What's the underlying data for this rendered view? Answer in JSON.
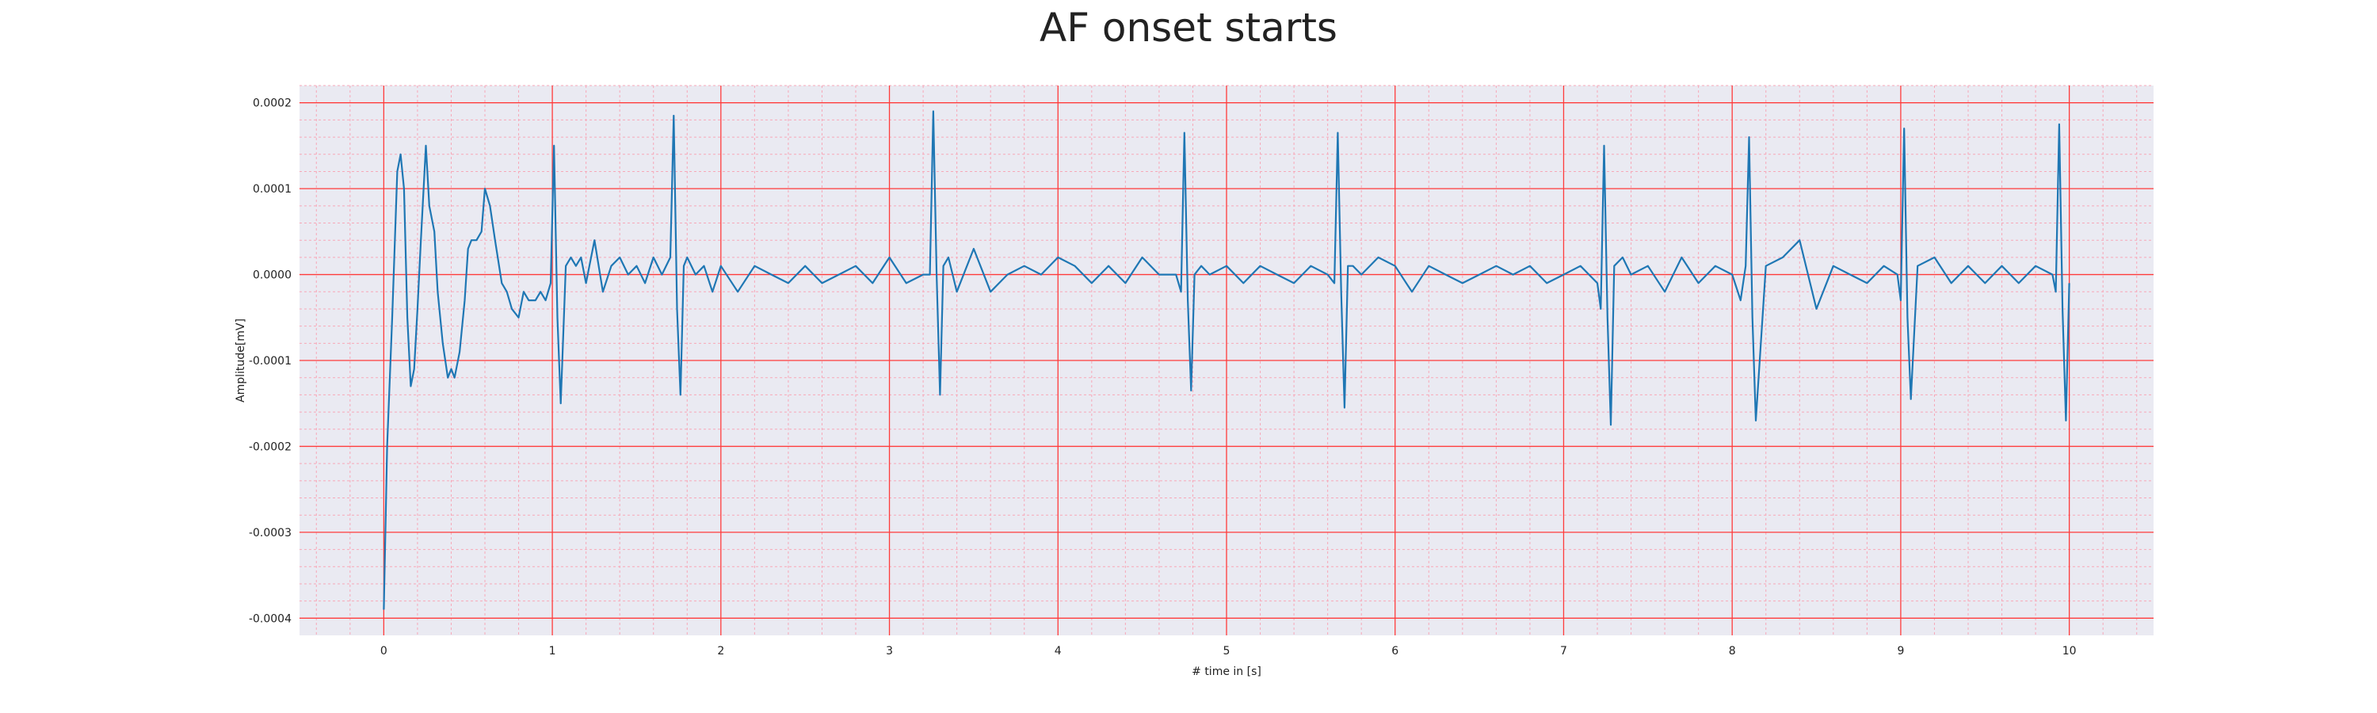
{
  "chart_data": {
    "type": "line",
    "title": "AF onset starts",
    "xlabel": "# time in [s]",
    "ylabel": "Amplitude[mV]",
    "xlim": [
      -0.5,
      10.5
    ],
    "ylim": [
      -0.00042,
      0.00022
    ],
    "xticks": [
      0,
      1,
      2,
      3,
      4,
      5,
      6,
      7,
      8,
      9,
      10
    ],
    "xtick_labels": [
      "0",
      "1",
      "2",
      "3",
      "4",
      "5",
      "6",
      "7",
      "8",
      "9",
      "10"
    ],
    "yticks": [
      0.0002,
      0.0001,
      0.0,
      -0.0001,
      -0.0002,
      -0.0003,
      -0.0004
    ],
    "ytick_labels": [
      "0.0002",
      "0.0001",
      "0.0000",
      "-0.0001",
      "-0.0002",
      "-0.0003",
      "-0.0004"
    ],
    "grid": true,
    "colors": {
      "background": "#eaeaf2",
      "major_grid": "#ff3b3b",
      "minor_grid": "#f7a8b8",
      "line": "#1f77b4"
    },
    "series": [
      {
        "x": [
          0.0,
          0.02,
          0.05,
          0.08,
          0.1,
          0.12,
          0.14,
          0.16,
          0.18,
          0.2,
          0.22,
          0.25,
          0.27,
          0.3,
          0.32,
          0.35,
          0.38,
          0.4,
          0.42,
          0.45,
          0.48,
          0.5,
          0.52,
          0.55,
          0.58,
          0.6,
          0.63,
          0.66,
          0.7,
          0.73,
          0.76,
          0.8,
          0.83,
          0.86,
          0.9,
          0.93,
          0.96,
          0.99,
          1.01,
          1.03,
          1.05,
          1.08,
          1.11,
          1.14,
          1.17,
          1.2,
          1.25,
          1.3,
          1.35,
          1.4,
          1.45,
          1.5,
          1.55,
          1.6,
          1.65,
          1.7,
          1.72,
          1.74,
          1.76,
          1.78,
          1.8,
          1.85,
          1.9,
          1.95,
          2.0,
          2.1,
          2.2,
          2.3,
          2.4,
          2.5,
          2.6,
          2.7,
          2.8,
          2.9,
          3.0,
          3.1,
          3.2,
          3.24,
          3.26,
          3.28,
          3.3,
          3.32,
          3.35,
          3.4,
          3.5,
          3.6,
          3.7,
          3.8,
          3.9,
          4.0,
          4.1,
          4.2,
          4.3,
          4.4,
          4.5,
          4.6,
          4.7,
          4.73,
          4.75,
          4.77,
          4.79,
          4.81,
          4.85,
          4.9,
          5.0,
          5.1,
          5.2,
          5.3,
          5.4,
          5.5,
          5.6,
          5.64,
          5.66,
          5.68,
          5.7,
          5.72,
          5.75,
          5.8,
          5.9,
          6.0,
          6.1,
          6.2,
          6.3,
          6.4,
          6.5,
          6.6,
          6.7,
          6.8,
          6.9,
          7.0,
          7.1,
          7.2,
          7.22,
          7.24,
          7.26,
          7.28,
          7.3,
          7.35,
          7.4,
          7.5,
          7.6,
          7.7,
          7.8,
          7.9,
          8.0,
          8.05,
          8.08,
          8.1,
          8.12,
          8.14,
          8.2,
          8.3,
          8.4,
          8.5,
          8.6,
          8.7,
          8.8,
          8.9,
          8.98,
          9.0,
          9.02,
          9.04,
          9.06,
          9.1,
          9.2,
          9.3,
          9.4,
          9.5,
          9.6,
          9.7,
          9.8,
          9.9,
          9.92,
          9.94,
          9.96,
          9.98,
          10.0
        ],
        "y": [
          -0.00039,
          -0.0002,
          -5e-05,
          0.00012,
          0.00014,
          0.0001,
          -5e-05,
          -0.00013,
          -0.00011,
          -4e-05,
          4e-05,
          0.00015,
          8e-05,
          5e-05,
          -2e-05,
          -8e-05,
          -0.00012,
          -0.00011,
          -0.00012,
          -9e-05,
          -3e-05,
          3e-05,
          4e-05,
          4e-05,
          5e-05,
          0.0001,
          8e-05,
          4e-05,
          -1e-05,
          -2e-05,
          -4e-05,
          -5e-05,
          -2e-05,
          -3e-05,
          -3e-05,
          -2e-05,
          -3e-05,
          -1e-05,
          0.00015,
          -5e-05,
          -0.00015,
          1e-05,
          2e-05,
          1e-05,
          2e-05,
          -1e-05,
          4e-05,
          -2e-05,
          1e-05,
          2e-05,
          0.0,
          1e-05,
          -1e-05,
          2e-05,
          0.0,
          2e-05,
          0.000185,
          -4e-05,
          -0.00014,
          1e-05,
          2e-05,
          0.0,
          1e-05,
          -2e-05,
          1e-05,
          -2e-05,
          1e-05,
          0.0,
          -1e-05,
          1e-05,
          -1e-05,
          0.0,
          1e-05,
          -1e-05,
          2e-05,
          -1e-05,
          0.0,
          0.0,
          0.00019,
          0.0,
          -0.00014,
          1e-05,
          2e-05,
          -2e-05,
          3e-05,
          -2e-05,
          0.0,
          1e-05,
          0.0,
          2e-05,
          1e-05,
          -1e-05,
          1e-05,
          -1e-05,
          2e-05,
          0.0,
          0.0,
          -2e-05,
          0.000165,
          -3e-05,
          -0.000135,
          0.0,
          1e-05,
          0.0,
          1e-05,
          -1e-05,
          1e-05,
          0.0,
          -1e-05,
          1e-05,
          0.0,
          -1e-05,
          0.000165,
          -2e-05,
          -0.000155,
          1e-05,
          1e-05,
          0.0,
          2e-05,
          1e-05,
          -2e-05,
          1e-05,
          0.0,
          -1e-05,
          0.0,
          1e-05,
          0.0,
          1e-05,
          -1e-05,
          0.0,
          1e-05,
          -1e-05,
          -4e-05,
          0.00015,
          -5e-05,
          -0.000175,
          1e-05,
          2e-05,
          0.0,
          1e-05,
          -2e-05,
          2e-05,
          -1e-05,
          1e-05,
          0.0,
          -3e-05,
          1e-05,
          0.00016,
          -5e-05,
          -0.00017,
          1e-05,
          2e-05,
          4e-05,
          -4e-05,
          1e-05,
          0.0,
          -1e-05,
          1e-05,
          0.0,
          -3e-05,
          0.00017,
          -5e-05,
          -0.000145,
          1e-05,
          2e-05,
          -1e-05,
          1e-05,
          -1e-05,
          1e-05,
          -1e-05,
          1e-05,
          0.0,
          -2e-05,
          0.000175,
          -4e-05,
          -0.00017,
          -1e-05
        ]
      }
    ]
  }
}
